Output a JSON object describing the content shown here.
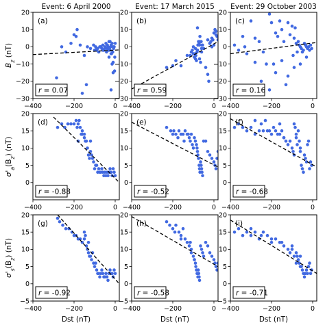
{
  "figure": {
    "column_titles": [
      "Event: 6 April 2000",
      "Event: 17 March 2015",
      "Event: 29 October 2003"
    ],
    "row_ylabels": [
      "B_z (nT)",
      "σ'_a(B_z) (nT)",
      "σ'_s(B_z) (nT)"
    ],
    "xlabel": "Dst (nT)"
  },
  "colors": {
    "points": "#4169e1",
    "fit": "#000000"
  },
  "chart_data": [
    {
      "type": "scatter",
      "panel": "(a)",
      "title": "Event: 6 April 2000",
      "ylabel": "B_z (nT)",
      "xlabel": "",
      "xlim": [
        -400,
        20
      ],
      "ylim": [
        -30,
        20
      ],
      "xticks": [
        -400,
        -200,
        0
      ],
      "yticks": [
        -30,
        -20,
        -10,
        0,
        10,
        20
      ],
      "r_label": "r = 0.07",
      "fit": {
        "x": [
          -400,
          20
        ],
        "y": [
          -4.5,
          -1.8
        ]
      },
      "x": [
        -285,
        -215,
        -185,
        -160,
        -150,
        -140,
        -135,
        -120,
        -105,
        -95,
        -90,
        -85,
        -80,
        -75,
        -70,
        -65,
        -60,
        -55,
        -50,
        -45,
        -42,
        -40,
        -38,
        -35,
        -32,
        -30,
        -28,
        -25,
        -22,
        -20,
        -18,
        -15,
        -12,
        -10,
        -8,
        -5,
        -3,
        -2,
        0,
        -100,
        -90,
        -60,
        -30,
        -20,
        -15,
        -10,
        -25,
        -50,
        -70,
        -200,
        -190,
        -170,
        -260,
        -240,
        -20,
        -10
      ],
      "y": [
        -18,
        2,
        10,
        -27,
        -5,
        -22,
        0,
        -1,
        1,
        0,
        -2,
        -1,
        -3,
        0,
        0,
        -1,
        1,
        -2,
        0,
        2,
        -3,
        -1,
        1,
        0,
        -2,
        3,
        -1,
        -2,
        0,
        1,
        -4,
        2,
        -3,
        0,
        -1,
        0,
        -14,
        -6,
        2,
        -2,
        -1,
        -2,
        -6,
        -4,
        -10,
        -15,
        3,
        -1,
        0,
        7,
        6,
        1,
        0,
        -3,
        -25,
        -9
      ]
    },
    {
      "type": "scatter",
      "panel": "(b)",
      "title": "Event: 17 March 2015",
      "ylabel": "",
      "xlabel": "",
      "xlim": [
        -400,
        20
      ],
      "ylim": [
        -30,
        20
      ],
      "xticks": [
        -400,
        -200,
        0
      ],
      "yticks": [
        -30,
        -20,
        -10,
        0,
        10,
        20
      ],
      "r_label": "r = 0.59",
      "fit": {
        "x": [
          -400,
          20
        ],
        "y": [
          -24.5,
          3.0
        ]
      },
      "x": [
        -230,
        -200,
        -185,
        -160,
        -130,
        -115,
        -110,
        -105,
        -100,
        -95,
        -92,
        -90,
        -88,
        -85,
        -82,
        -80,
        -78,
        -75,
        -72,
        -70,
        -68,
        -65,
        -62,
        -60,
        -58,
        -55,
        -100,
        -90,
        -80,
        -70,
        -60,
        -50,
        -40,
        -30,
        -25,
        -20,
        -15,
        -10,
        -5,
        0,
        5,
        10,
        15,
        20,
        10,
        0,
        -10,
        -20,
        -30,
        -80,
        -70
      ],
      "y": [
        -12,
        -11,
        -8,
        -11,
        -5,
        -5,
        -3,
        -2,
        -4,
        -6,
        -4,
        -7,
        -5,
        -8,
        -3,
        -2,
        1,
        3,
        2,
        1,
        6,
        -9,
        3,
        -1,
        1,
        1,
        0,
        -1,
        -2,
        3,
        -3,
        -1,
        -12,
        -16,
        -20,
        2,
        3,
        5,
        4,
        8,
        10,
        9,
        6,
        4,
        7,
        1,
        0,
        2,
        4,
        11,
        -7
      ]
    },
    {
      "type": "scatter",
      "panel": "(c)",
      "title": "Event: 29 October 2003",
      "ylabel": "",
      "xlabel": "",
      "xlim": [
        -400,
        20
      ],
      "ylim": [
        -30,
        20
      ],
      "xticks": [
        -400,
        -200,
        0
      ],
      "yticks": [
        -30,
        -20,
        -10,
        0,
        10,
        20
      ],
      "r_label": "r = 0.16",
      "fit": {
        "x": [
          -400,
          20
        ],
        "y": [
          -4.0,
          2.5
        ]
      },
      "x": [
        -380,
        -360,
        -340,
        -330,
        -300,
        -280,
        -260,
        -240,
        -225,
        -210,
        -200,
        -190,
        -180,
        -170,
        -160,
        -150,
        -140,
        -130,
        -120,
        -110,
        -100,
        -95,
        -90,
        -85,
        -80,
        -75,
        -70,
        -65,
        -60,
        -55,
        -50,
        -45,
        -40,
        -35,
        -30,
        -25,
        -20,
        -15,
        -10,
        -5,
        -210,
        -180,
        -150,
        -120,
        -90,
        -60,
        -30,
        -250,
        -280,
        -320
      ],
      "y": [
        1,
        -2,
        6,
        0,
        15,
        5,
        3,
        -3,
        -10,
        19,
        14,
        -10,
        8,
        6,
        15,
        10,
        3,
        -22,
        14,
        7,
        12,
        -5,
        5,
        11,
        2,
        -3,
        3,
        1,
        0,
        -1,
        -3,
        -2,
        2,
        1,
        0,
        -1,
        0,
        -2,
        1,
        -1,
        -25,
        -15,
        -8,
        -17,
        -12,
        -10,
        -6,
        -20,
        -9,
        -4
      ]
    },
    {
      "type": "scatter",
      "panel": "(d)",
      "title": "",
      "ylabel": "σ'_a(B_z) (nT)",
      "xlabel": "",
      "xlim": [
        -400,
        20
      ],
      "ylim": [
        -5,
        20
      ],
      "xticks": [
        -400,
        -200,
        0
      ],
      "yticks": [
        0,
        5,
        10,
        15,
        20
      ],
      "r_label": "r = -0.88",
      "fit": {
        "x": [
          -300,
          20
        ],
        "y": [
          19.0,
          0.0
        ]
      },
      "x": [
        -280,
        -260,
        -245,
        -230,
        -215,
        -200,
        -190,
        -185,
        -180,
        -175,
        -170,
        -165,
        -160,
        -150,
        -145,
        -140,
        -135,
        -130,
        -125,
        -120,
        -115,
        -110,
        -105,
        -100,
        -95,
        -90,
        -85,
        -80,
        -75,
        -70,
        -65,
        -60,
        -55,
        -50,
        -45,
        -40,
        -35,
        -30,
        -25,
        -20,
        -15,
        -10,
        -5,
        0,
        -180,
        -160,
        -150,
        -120
      ],
      "y": [
        16,
        17,
        16,
        17,
        17,
        17,
        18,
        16,
        17,
        18,
        16,
        14,
        14,
        13,
        12,
        12,
        10,
        8,
        7,
        9,
        8,
        7,
        6,
        4,
        5,
        5,
        3,
        4,
        3,
        3,
        4,
        3,
        2,
        3,
        2,
        3,
        2,
        3,
        4,
        3,
        2,
        4,
        3,
        2,
        12,
        15,
        14,
        12
      ]
    },
    {
      "type": "scatter",
      "panel": "(e)",
      "title": "",
      "ylabel": "",
      "xlabel": "",
      "xlim": [
        -400,
        20
      ],
      "ylim": [
        -5,
        20
      ],
      "xticks": [
        -400,
        -200,
        0
      ],
      "yticks": [
        0,
        5,
        10,
        15,
        20
      ],
      "r_label": "r = -0.52",
      "fit": {
        "x": [
          -400,
          20
        ],
        "y": [
          17.5,
          4.5
        ]
      },
      "x": [
        -230,
        -210,
        -195,
        -185,
        -170,
        -160,
        -150,
        -140,
        -130,
        -120,
        -115,
        -110,
        -105,
        -100,
        -95,
        -90,
        -85,
        -82,
        -80,
        -78,
        -75,
        -72,
        -70,
        -68,
        -65,
        -62,
        -60,
        -58,
        -55,
        -50,
        -40,
        -30,
        -20,
        -10,
        0,
        5,
        10,
        15,
        20,
        -200,
        -175,
        -145,
        -125
      ],
      "y": [
        16,
        15,
        15,
        14,
        15,
        14,
        14,
        15,
        14,
        13,
        12,
        14,
        11,
        10,
        13,
        12,
        11,
        10,
        9,
        8,
        7,
        5,
        4,
        3,
        6,
        5,
        4,
        3,
        2,
        12,
        12,
        9,
        8,
        7,
        6,
        5,
        4,
        7,
        9,
        14,
        13,
        12,
        14
      ]
    },
    {
      "type": "scatter",
      "panel": "(f)",
      "title": "",
      "ylabel": "",
      "xlabel": "",
      "xlim": [
        -400,
        20
      ],
      "ylim": [
        -5,
        20
      ],
      "xticks": [
        -400,
        -200,
        0
      ],
      "yticks": [
        0,
        5,
        10,
        15,
        20
      ],
      "r_label": "r = -0.68",
      "fit": {
        "x": [
          -400,
          20
        ],
        "y": [
          18.5,
          4.5
        ]
      },
      "x": [
        -380,
        -360,
        -340,
        -320,
        -300,
        -280,
        -260,
        -240,
        -220,
        -200,
        -190,
        -180,
        -170,
        -160,
        -150,
        -140,
        -130,
        -120,
        -110,
        -100,
        -95,
        -90,
        -85,
        -80,
        -75,
        -70,
        -65,
        -60,
        -55,
        -50,
        -45,
        -40,
        -35,
        -30,
        -25,
        -20,
        -15,
        -10,
        -5,
        -280,
        -250,
        -230,
        -210,
        -160,
        -140,
        -90,
        -80,
        -60
      ],
      "y": [
        16,
        17,
        16,
        15,
        16,
        14,
        15,
        15,
        15,
        14,
        16,
        15,
        14,
        14,
        15,
        13,
        12,
        11,
        12,
        10,
        9,
        8,
        16,
        13,
        11,
        15,
        12,
        9,
        5,
        4,
        3,
        8,
        7,
        6,
        11,
        12,
        4,
        6,
        5,
        18,
        17,
        18,
        15,
        17,
        13,
        17,
        14,
        10
      ]
    },
    {
      "type": "scatter",
      "panel": "(g)",
      "title": "",
      "ylabel": "σ'_s(B_z) (nT)",
      "xlabel": "Dst (nT)",
      "xlim": [
        -400,
        20
      ],
      "ylim": [
        -5,
        20
      ],
      "xticks": [
        -400,
        -200,
        0
      ],
      "yticks": [
        -5,
        0,
        5,
        10,
        15,
        20
      ],
      "r_label": "r = -0.92",
      "fit": {
        "x": [
          -280,
          20
        ],
        "y": [
          20.0,
          0.0
        ]
      },
      "x": [
        -280,
        -270,
        -255,
        -240,
        -225,
        -210,
        -200,
        -190,
        -180,
        -170,
        -160,
        -150,
        -145,
        -140,
        -135,
        -130,
        -125,
        -120,
        -115,
        -110,
        -105,
        -100,
        -95,
        -90,
        -85,
        -80,
        -75,
        -70,
        -65,
        -60,
        -55,
        -50,
        -45,
        -40,
        -35,
        -30,
        -25,
        -20,
        -15,
        -10,
        -5,
        0,
        -150,
        -130
      ],
      "y": [
        19,
        18,
        17,
        16,
        16,
        15,
        14,
        14,
        13,
        13,
        12,
        15,
        14,
        11,
        10,
        9,
        8,
        8,
        7,
        9,
        6,
        5,
        6,
        4,
        3,
        3,
        2,
        3,
        4,
        3,
        2,
        2,
        3,
        2,
        1,
        3,
        4,
        3,
        3,
        2,
        4,
        3,
        13,
        12
      ]
    },
    {
      "type": "scatter",
      "panel": "(h)",
      "title": "",
      "ylabel": "",
      "xlabel": "Dst (nT)",
      "xlim": [
        -400,
        20
      ],
      "ylim": [
        -5,
        20
      ],
      "xticks": [
        -400,
        -200,
        0
      ],
      "yticks": [
        -5,
        0,
        5,
        10,
        15,
        20
      ],
      "r_label": "r = -0.58",
      "fit": {
        "x": [
          -400,
          20
        ],
        "y": [
          19.5,
          5.0
        ]
      },
      "x": [
        -230,
        -215,
        -200,
        -185,
        -170,
        -160,
        -150,
        -140,
        -130,
        -120,
        -115,
        -110,
        -100,
        -95,
        -90,
        -88,
        -85,
        -82,
        -80,
        -78,
        -76,
        -74,
        -72,
        -70,
        -65,
        -60,
        -55,
        -50,
        -40,
        -30,
        -20,
        -10,
        0,
        5,
        10,
        15,
        20,
        -190,
        -160,
        -110,
        -95
      ],
      "y": [
        18,
        17,
        16,
        17,
        15,
        14,
        16,
        13,
        12,
        11,
        12,
        10,
        8,
        7,
        6,
        5,
        4,
        3,
        3,
        2,
        4,
        3,
        2,
        1,
        11,
        10,
        9,
        8,
        12,
        11,
        9,
        8,
        7,
        6,
        5,
        4,
        6,
        15,
        13,
        9,
        7
      ]
    },
    {
      "type": "scatter",
      "panel": "(i)",
      "title": "",
      "ylabel": "",
      "xlabel": "Dst (nT)",
      "xlim": [
        -400,
        20
      ],
      "ylim": [
        -5,
        20
      ],
      "xticks": [
        -400,
        -200,
        0
      ],
      "yticks": [
        -5,
        0,
        5,
        10,
        15,
        20
      ],
      "r_label": "r = -0.71",
      "fit": {
        "x": [
          -400,
          20
        ],
        "y": [
          18.5,
          3.0
        ]
      },
      "x": [
        -380,
        -360,
        -340,
        -320,
        -300,
        -280,
        -260,
        -240,
        -220,
        -200,
        -180,
        -160,
        -140,
        -120,
        -110,
        -100,
        -90,
        -80,
        -75,
        -70,
        -65,
        -60,
        -55,
        -50,
        -45,
        -40,
        -35,
        -30,
        -25,
        -20,
        -15,
        -10,
        -5,
        -300,
        -250,
        -200,
        -150,
        -100,
        -80,
        -60,
        -40
      ],
      "y": [
        15,
        16,
        14,
        15,
        14,
        15,
        13,
        15,
        14,
        12,
        13,
        12,
        11,
        10,
        9,
        11,
        8,
        9,
        8,
        7,
        6,
        8,
        5,
        4,
        3,
        2,
        3,
        4,
        3,
        5,
        6,
        3,
        4,
        16,
        14,
        13,
        12,
        10,
        6,
        5,
        3
      ]
    }
  ]
}
